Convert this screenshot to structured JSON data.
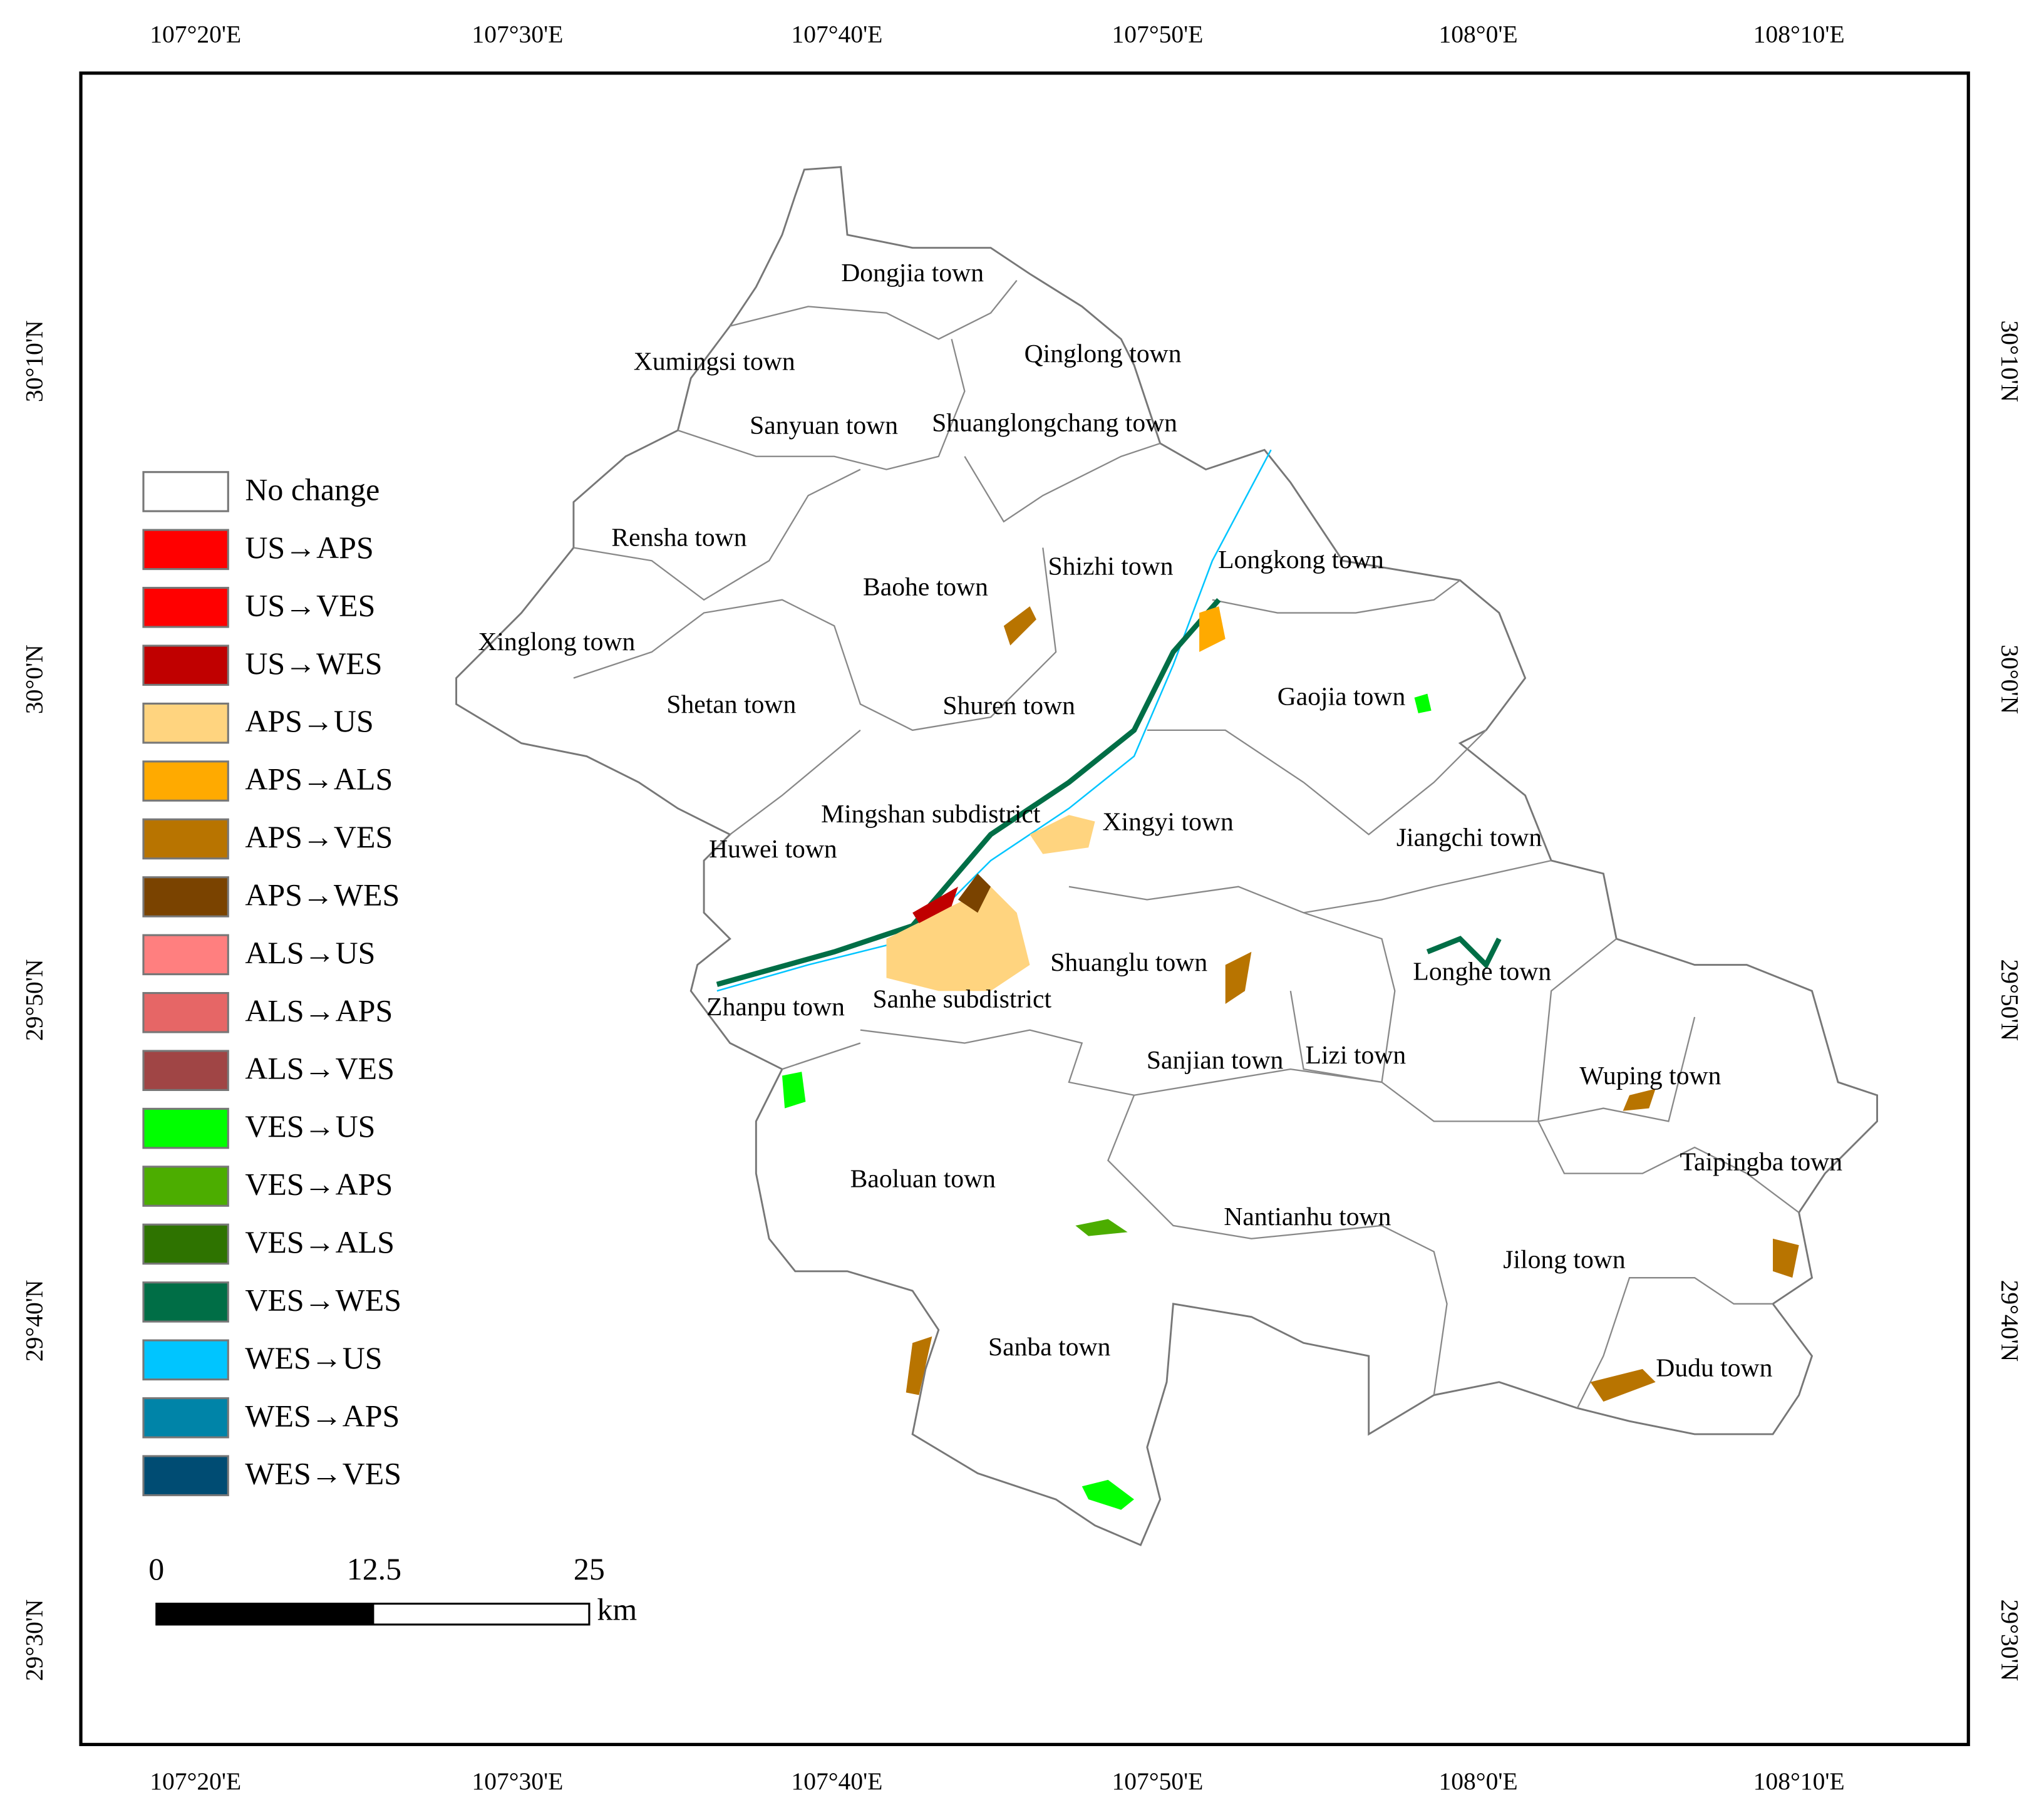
{
  "map": {
    "lon_labels": [
      "107°20'E",
      "107°30'E",
      "107°40'E",
      "107°50'E",
      "108°0'E",
      "108°10'E"
    ],
    "lat_labels": [
      "30°10'N",
      "30°0'N",
      "29°50'N",
      "29°40'N",
      "29°30'N"
    ],
    "towns": [
      "Dongjia town",
      "Xumingsi town",
      "Qinglong town",
      "Sanyuan town",
      "Shuanglongchang town",
      "Rensha town",
      "Shizhi town",
      "Longkong town",
      "Baohe town",
      "Xinglong town",
      "Gaojia town",
      "Shetan town",
      "Shuren town",
      "Mingshan subdistrict",
      "Xingyi town",
      "Jiangchi town",
      "Huwei town",
      "Shuanglu town",
      "Longhe town",
      "Zhanpu town",
      "Sanhe subdistrict",
      "Sanjian town",
      "Lizi town",
      "Wuping town",
      "Taipingba town",
      "Baoluan town",
      "Nantianhu town",
      "Jilong town",
      "Sanba town",
      "Dudu town"
    ],
    "legend": [
      {
        "label": "No change",
        "color": "#ffffff"
      },
      {
        "label": "US→APS",
        "color": "#ff0000"
      },
      {
        "label": "US→VES",
        "color": "#ff0000"
      },
      {
        "label": "US→WES",
        "color": "#c00000"
      },
      {
        "label": "APS→US",
        "color": "#ffd47f"
      },
      {
        "label": "APS→ALS",
        "color": "#ffaa00"
      },
      {
        "label": "APS→VES",
        "color": "#b87400"
      },
      {
        "label": "APS→WES",
        "color": "#7a4300"
      },
      {
        "label": "ALS→US",
        "color": "#ff7f7f"
      },
      {
        "label": "ALS→APS",
        "color": "#e66666"
      },
      {
        "label": "ALS→VES",
        "color": "#a04545"
      },
      {
        "label": "VES→US",
        "color": "#00ff00"
      },
      {
        "label": "VES→APS",
        "color": "#4cad00"
      },
      {
        "label": "VES→ALS",
        "color": "#2e7300"
      },
      {
        "label": "VES→WES",
        "color": "#006e46"
      },
      {
        "label": "WES→US",
        "color": "#00c5ff"
      },
      {
        "label": "WES→APS",
        "color": "#0084a8"
      },
      {
        "label": "WES→VES",
        "color": "#004c73"
      }
    ],
    "scale_bar": {
      "ticks": [
        "0",
        "12.5",
        "25"
      ],
      "unit": "km"
    }
  }
}
